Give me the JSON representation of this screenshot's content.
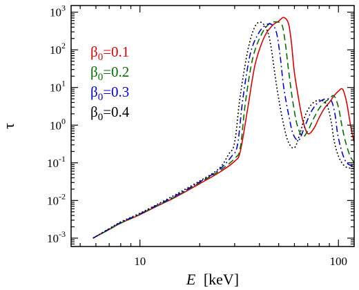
{
  "chart_data": {
    "type": "line",
    "xlabel": "E",
    "xlabel_unit": "[keV]",
    "ylabel": "τ",
    "x_scale": "log",
    "y_scale": "log",
    "xlim": [
      4.5,
      120
    ],
    "ylim": [
      0.0006,
      1500
    ],
    "x_ticks": [
      {
        "value": 10,
        "label": "10"
      },
      {
        "value": 100,
        "label": "100"
      }
    ],
    "y_ticks": [
      {
        "value": 0.001,
        "base": "10",
        "exp": "-3"
      },
      {
        "value": 0.01,
        "base": "10",
        "exp": "-2"
      },
      {
        "value": 0.1,
        "base": "10",
        "exp": "-1"
      },
      {
        "value": 1,
        "base": "10",
        "exp": "0"
      },
      {
        "value": 10,
        "base": "10",
        "exp": "1"
      },
      {
        "value": 100,
        "base": "10",
        "exp": "2"
      },
      {
        "value": 1000,
        "base": "10",
        "exp": "3"
      }
    ],
    "legend_position": "top-left",
    "series": [
      {
        "name": "β0=0.1",
        "symbol": "β",
        "sub": "0",
        "value_text": "=0.1",
        "color": "#e00000",
        "dash": "solid",
        "x": [
          5.8,
          7,
          8,
          10,
          12,
          15,
          20,
          25,
          30,
          32,
          35,
          38,
          42,
          46,
          50,
          53,
          56,
          58,
          60,
          63,
          66,
          70,
          75,
          80,
          85,
          90,
          95,
          100,
          105,
          110,
          115,
          120
        ],
        "y": [
          0.001,
          0.0017,
          0.0025,
          0.0042,
          0.0068,
          0.012,
          0.028,
          0.055,
          0.11,
          0.2,
          3,
          40,
          200,
          420,
          580,
          720,
          500,
          150,
          25,
          5,
          1.4,
          0.6,
          0.8,
          1.6,
          2.8,
          4,
          6,
          8,
          9,
          4,
          1,
          0.35
        ]
      },
      {
        "name": "β0=0.2",
        "symbol": "β",
        "sub": "0",
        "value_text": "=0.2",
        "color": "#007000",
        "dash": "dashed",
        "x": [
          5.8,
          7,
          8,
          10,
          12,
          15,
          20,
          25,
          30,
          32,
          34,
          37,
          41,
          45,
          49,
          52,
          54,
          56,
          59,
          62,
          66,
          70,
          75,
          80,
          85,
          90,
          95,
          100,
          104,
          108,
          114,
          120
        ],
        "y": [
          0.001,
          0.0017,
          0.0025,
          0.0043,
          0.007,
          0.0125,
          0.03,
          0.06,
          0.13,
          0.25,
          4,
          60,
          260,
          500,
          550,
          450,
          150,
          30,
          4,
          1,
          0.5,
          0.7,
          1.5,
          2.8,
          4,
          5,
          6,
          3,
          1,
          0.4,
          0.16,
          0.1
        ]
      },
      {
        "name": "β0=0.3",
        "symbol": "β",
        "sub": "0",
        "value_text": "=0.3",
        "color": "#0000dd",
        "dash": "dashdot",
        "x": [
          5.8,
          7,
          8,
          10,
          12,
          15,
          20,
          25,
          29,
          31,
          33,
          36,
          40,
          44,
          47,
          49,
          51,
          53,
          56,
          59,
          63,
          67,
          72,
          77,
          82,
          87,
          92,
          96,
          99,
          104,
          110,
          120
        ],
        "y": [
          0.001,
          0.00175,
          0.0026,
          0.0044,
          0.0072,
          0.013,
          0.031,
          0.065,
          0.15,
          0.3,
          5,
          80,
          300,
          480,
          430,
          250,
          60,
          10,
          2,
          0.6,
          0.4,
          0.8,
          2,
          3.5,
          4.5,
          5,
          4.5,
          2,
          0.6,
          0.2,
          0.1,
          0.08
        ]
      },
      {
        "name": "β0=0.4",
        "symbol": "β",
        "sub": "0",
        "value_text": "=0.4",
        "color": "#000000",
        "dash": "dotted",
        "x": [
          5.8,
          7,
          8,
          10,
          12,
          15,
          20,
          25,
          28,
          30,
          32,
          35,
          38,
          41,
          44,
          46,
          48,
          50,
          53,
          56,
          60,
          64,
          68,
          73,
          78,
          83,
          88,
          92,
          95,
          100,
          108,
          120
        ],
        "y": [
          0.001,
          0.0018,
          0.0027,
          0.0046,
          0.0075,
          0.014,
          0.033,
          0.07,
          0.17,
          0.35,
          6,
          100,
          420,
          530,
          300,
          100,
          20,
          5,
          1,
          0.35,
          0.25,
          0.6,
          1.8,
          3.5,
          4.5,
          4.5,
          3.2,
          1.2,
          0.4,
          0.15,
          0.08,
          0.07
        ]
      }
    ]
  }
}
